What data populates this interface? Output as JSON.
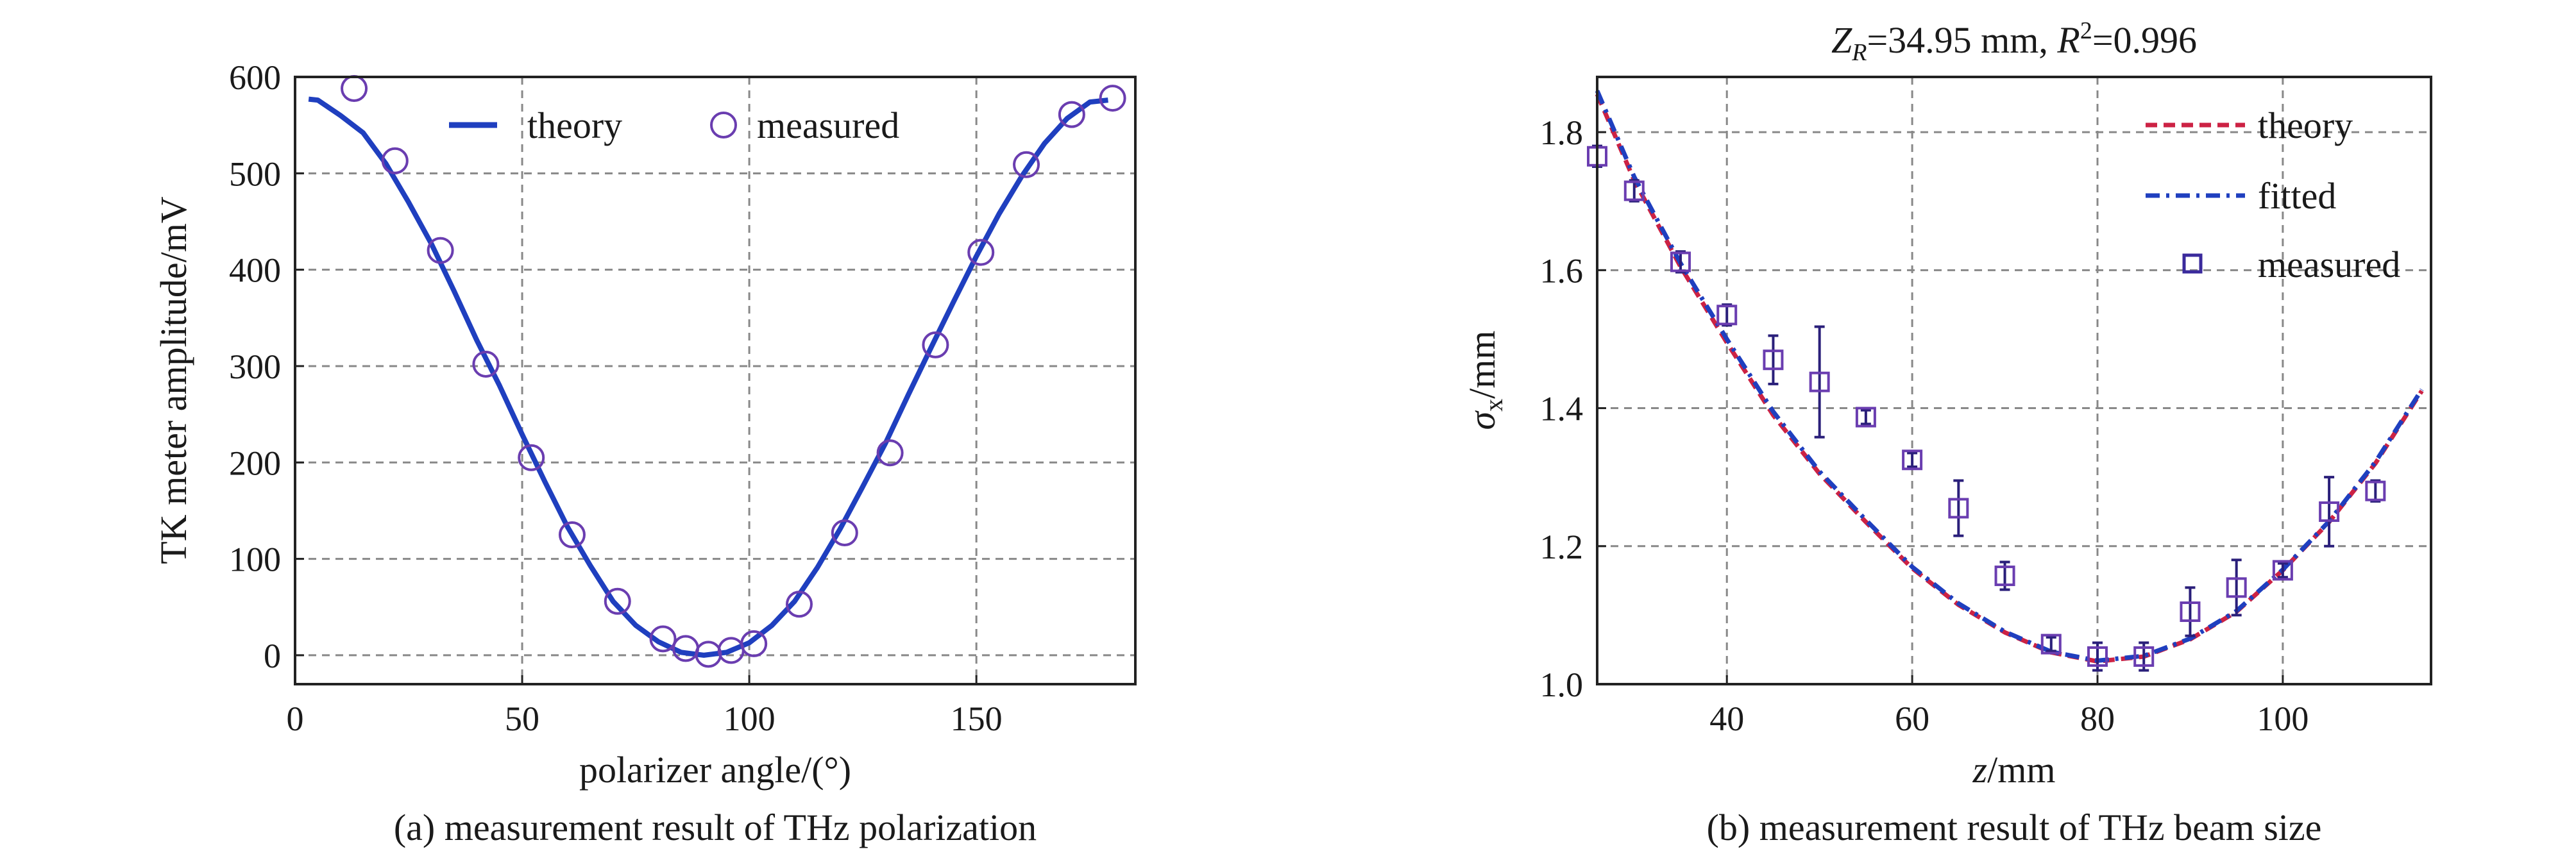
{
  "chart_data": [
    {
      "type": "scatter",
      "caption": "(a) measurement result of THz polarization",
      "xlabel": "polarizer angle/(°)",
      "ylabel": "TK meter amplitude/mV",
      "xlim": [
        0,
        185
      ],
      "ylim": [
        -30,
        600
      ],
      "xticks": [
        0,
        50,
        100,
        150
      ],
      "yticks": [
        0,
        100,
        200,
        300,
        400,
        500,
        600
      ],
      "grid": true,
      "legend_position": "top",
      "series": [
        {
          "name": "theory",
          "kind": "line",
          "color": "#1f3fbf",
          "x": [
            3,
            5,
            10,
            15,
            20,
            25,
            30,
            35,
            40,
            45,
            50,
            55,
            60,
            65,
            70,
            75,
            80,
            85,
            90,
            95,
            100,
            105,
            110,
            115,
            120,
            125,
            130,
            135,
            140,
            145,
            150,
            155,
            160,
            165,
            170,
            175,
            179
          ],
          "y": [
            577,
            576,
            560,
            542,
            510,
            470,
            427,
            378,
            327,
            280,
            229,
            180,
            133,
            93,
            56,
            31,
            14,
            3,
            0,
            3,
            13,
            31,
            56,
            91,
            131,
            175,
            220,
            270,
            319,
            367,
            414,
            458,
            497,
            531,
            557,
            574,
            576
          ]
        },
        {
          "name": "measured",
          "kind": "scatter",
          "marker": "circle",
          "color": "#6a3db0",
          "x": [
            13,
            22,
            32,
            42,
            52,
            61,
            71,
            81,
            86,
            91,
            96,
            101,
            111,
            121,
            131,
            141,
            151,
            161,
            171,
            180
          ],
          "y": [
            588,
            513,
            420,
            302,
            205,
            125,
            56,
            17,
            7,
            1,
            5,
            12,
            53,
            127,
            210,
            322,
            418,
            509,
            561,
            578
          ]
        }
      ]
    },
    {
      "type": "scatter",
      "caption": "(b) measurement result of THz beam size",
      "title_main": "Z",
      "title_sub": "R",
      "title_mid": "=34.95 mm, ",
      "title_r": "R",
      "title_sup": "2",
      "title_end": "=0.996",
      "xlabel_main": "z",
      "xlabel_rest": "/mm",
      "ylabel_main": "σ",
      "ylabel_sub": "x",
      "ylabel_rest": "/mm",
      "xlim": [
        26,
        116
      ],
      "ylim": [
        1.0,
        1.88
      ],
      "xticks": [
        40,
        60,
        80,
        100
      ],
      "yticks": [
        1.0,
        1.2,
        1.4,
        1.6,
        1.8
      ],
      "grid": true,
      "legend_position": "top-right",
      "series": [
        {
          "name": "theory",
          "kind": "line",
          "style": "dashed",
          "color": "#cc2244",
          "x": [
            26,
            30,
            35,
            40,
            45,
            50,
            55,
            60,
            65,
            70,
            75,
            80,
            85,
            90,
            95,
            100,
            105,
            110,
            115
          ],
          "y": [
            1.855,
            1.73,
            1.605,
            1.495,
            1.39,
            1.305,
            1.235,
            1.168,
            1.115,
            1.075,
            1.046,
            1.033,
            1.04,
            1.065,
            1.105,
            1.165,
            1.235,
            1.32,
            1.425
          ]
        },
        {
          "name": "fitted",
          "kind": "line",
          "style": "dash-dot",
          "color": "#1f3fbf",
          "x": [
            26,
            30,
            35,
            40,
            45,
            50,
            55,
            60,
            65,
            70,
            75,
            80,
            85,
            90,
            95,
            100,
            105,
            110,
            115
          ],
          "y": [
            1.86,
            1.735,
            1.61,
            1.5,
            1.395,
            1.308,
            1.238,
            1.17,
            1.117,
            1.076,
            1.047,
            1.034,
            1.041,
            1.066,
            1.106,
            1.166,
            1.236,
            1.322,
            1.427
          ]
        },
        {
          "name": "measured",
          "kind": "errorbar",
          "marker": "square",
          "color": "#6a3db0",
          "x": [
            26,
            30,
            35,
            40,
            45,
            50,
            55,
            60,
            65,
            70,
            75,
            80,
            85,
            90,
            95,
            100,
            105,
            110
          ],
          "y": [
            1.765,
            1.715,
            1.612,
            1.535,
            1.47,
            1.438,
            1.387,
            1.325,
            1.255,
            1.157,
            1.058,
            1.04,
            1.04,
            1.105,
            1.14,
            1.165,
            1.25,
            1.28
          ],
          "err": [
            0.015,
            0.015,
            0.015,
            0.015,
            0.035,
            0.08,
            0.01,
            0.01,
            0.04,
            0.02,
            0.01,
            0.02,
            0.02,
            0.035,
            0.04,
            0.01,
            0.05,
            0.015
          ]
        }
      ]
    }
  ]
}
